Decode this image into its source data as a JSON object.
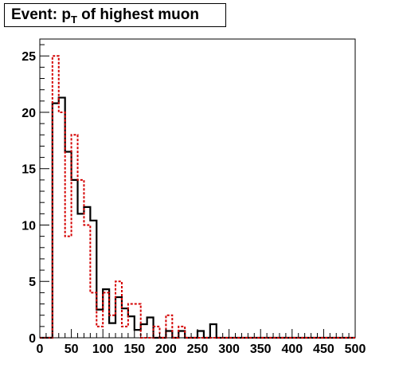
{
  "title": {
    "prefix": "Event: p",
    "subscript": "T",
    "suffix": " of highest muon"
  },
  "chart_data": {
    "type": "histogram",
    "title": "Event: p_T of highest muon",
    "xlabel": "",
    "ylabel": "",
    "xlim": [
      0,
      500
    ],
    "ylim": [
      0,
      26.5
    ],
    "bin_width": 10,
    "x_ticks": [
      0,
      50,
      100,
      150,
      200,
      250,
      300,
      350,
      400,
      450,
      500
    ],
    "y_ticks": [
      0,
      5,
      10,
      15,
      20,
      25
    ],
    "legend": null,
    "series": [
      {
        "style": "solid",
        "color": "#000000",
        "bin_edges": [
          20,
          30,
          40,
          50,
          60,
          70,
          80,
          90,
          100,
          110,
          120,
          130,
          140,
          150,
          160,
          170,
          180,
          190,
          200,
          210,
          220,
          230,
          240,
          250,
          260,
          270,
          280,
          290
        ],
        "values": [
          20.8,
          21.3,
          16.5,
          14.0,
          11.0,
          11.6,
          10.4,
          2.5,
          4.3,
          1.3,
          3.6,
          2.6,
          1.9,
          0.7,
          1.2,
          1.8,
          0.0,
          0.0,
          0.6,
          0.0,
          0.6,
          0.0,
          0.0,
          0.6,
          0.0,
          1.2,
          0.0
        ]
      },
      {
        "style": "dotted",
        "color": "#d40000",
        "bin_edges": [
          20,
          30,
          40,
          50,
          60,
          70,
          80,
          90,
          100,
          110,
          120,
          130,
          140,
          150,
          160,
          170,
          180,
          190,
          200,
          210,
          220,
          230,
          240,
          250
        ],
        "values": [
          25.0,
          20.0,
          9.0,
          18.0,
          14.0,
          10.0,
          4.0,
          1.0,
          4.0,
          2.0,
          5.0,
          1.0,
          3.0,
          3.0,
          0.0,
          0.0,
          1.0,
          0.0,
          2.0,
          0.0,
          1.0,
          0.0,
          0.0
        ]
      }
    ]
  }
}
